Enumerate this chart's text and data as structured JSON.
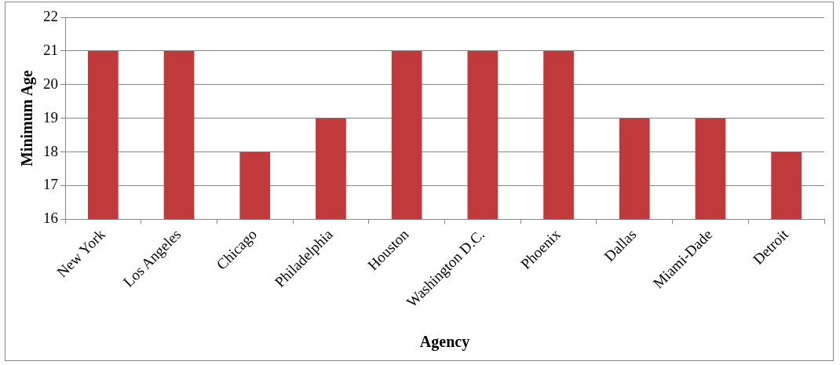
{
  "chart_data": {
    "type": "bar",
    "xlabel": "Agency",
    "ylabel": "Minimum Age",
    "categories": [
      "New York",
      "Los Angeles",
      "Chicago",
      "Philadelphia",
      "Houston",
      "Washington D.C.",
      "Phoenix",
      "Dallas",
      "Miami-Dade",
      "Detroit"
    ],
    "values": [
      21,
      21,
      18,
      19,
      21,
      21,
      21,
      19,
      19,
      18
    ],
    "color": "#c0393b",
    "ylim": [
      16,
      22
    ],
    "yticks": [
      16,
      17,
      18,
      19,
      20,
      21,
      22
    ],
    "grid": "y",
    "legend": false
  }
}
